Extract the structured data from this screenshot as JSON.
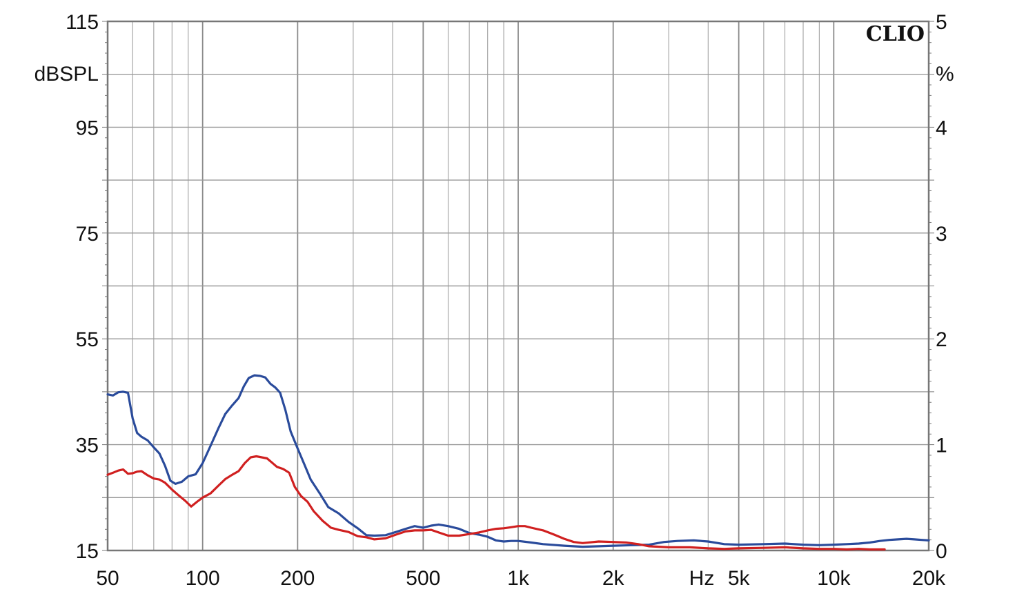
{
  "chart_data": {
    "type": "line",
    "title": "",
    "brand": "CLIO",
    "xlabel": "Hz",
    "ylabel": "dBSPL",
    "ylabel_right": "%",
    "x_scale": "log",
    "xlim": [
      50,
      20000
    ],
    "ylim": [
      15,
      115
    ],
    "ylim_right": [
      0,
      5
    ],
    "grid": true,
    "legend": "none",
    "x_ticks": [
      {
        "value": 50,
        "label": "50"
      },
      {
        "value": 100,
        "label": "100"
      },
      {
        "value": 200,
        "label": "200"
      },
      {
        "value": 500,
        "label": "500"
      },
      {
        "value": 1000,
        "label": "1k"
      },
      {
        "value": 2000,
        "label": "2k"
      },
      {
        "value": 5000,
        "label": "5k"
      },
      {
        "value": 10000,
        "label": "10k"
      },
      {
        "value": 20000,
        "label": "20k"
      }
    ],
    "y_ticks_left": [
      "115",
      "95",
      "75",
      "55",
      "35",
      "15"
    ],
    "y_ticks_right": [
      "5",
      "4",
      "3",
      "2",
      "1",
      "0"
    ],
    "series": [
      {
        "color": "#2a4b9b",
        "points": [
          [
            50,
            44.5
          ],
          [
            52,
            44.3
          ],
          [
            54,
            44.9
          ],
          [
            56,
            45.0
          ],
          [
            58,
            44.8
          ],
          [
            60,
            40.0
          ],
          [
            62,
            37.2
          ],
          [
            64,
            36.5
          ],
          [
            67,
            35.8
          ],
          [
            70,
            34.5
          ],
          [
            73,
            33.3
          ],
          [
            76,
            31.0
          ],
          [
            79,
            28.2
          ],
          [
            82,
            27.6
          ],
          [
            86,
            28.0
          ],
          [
            90,
            29.0
          ],
          [
            95,
            29.4
          ],
          [
            100,
            31.5
          ],
          [
            106,
            34.8
          ],
          [
            112,
            38.0
          ],
          [
            118,
            40.8
          ],
          [
            124,
            42.4
          ],
          [
            130,
            43.8
          ],
          [
            135,
            46.0
          ],
          [
            140,
            47.6
          ],
          [
            146,
            48.1
          ],
          [
            152,
            48.0
          ],
          [
            158,
            47.7
          ],
          [
            164,
            46.5
          ],
          [
            170,
            45.8
          ],
          [
            176,
            44.8
          ],
          [
            183,
            41.5
          ],
          [
            190,
            37.5
          ],
          [
            200,
            34.3
          ],
          [
            210,
            31.3
          ],
          [
            220,
            28.4
          ],
          [
            235,
            25.8
          ],
          [
            250,
            23.2
          ],
          [
            270,
            22.0
          ],
          [
            290,
            20.4
          ],
          [
            310,
            19.2
          ],
          [
            330,
            17.9
          ],
          [
            350,
            17.8
          ],
          [
            380,
            17.9
          ],
          [
            410,
            18.5
          ],
          [
            440,
            19.1
          ],
          [
            470,
            19.6
          ],
          [
            500,
            19.3
          ],
          [
            530,
            19.7
          ],
          [
            560,
            19.9
          ],
          [
            600,
            19.6
          ],
          [
            650,
            19.1
          ],
          [
            700,
            18.3
          ],
          [
            750,
            18.0
          ],
          [
            800,
            17.6
          ],
          [
            850,
            16.9
          ],
          [
            900,
            16.7
          ],
          [
            950,
            16.8
          ],
          [
            1000,
            16.8
          ],
          [
            1100,
            16.5
          ],
          [
            1200,
            16.2
          ],
          [
            1400,
            15.9
          ],
          [
            1600,
            15.7
          ],
          [
            1800,
            15.8
          ],
          [
            2000,
            15.9
          ],
          [
            2300,
            16.0
          ],
          [
            2600,
            16.1
          ],
          [
            2900,
            16.6
          ],
          [
            3200,
            16.8
          ],
          [
            3600,
            16.9
          ],
          [
            4000,
            16.7
          ],
          [
            4500,
            16.2
          ],
          [
            5000,
            16.1
          ],
          [
            6000,
            16.2
          ],
          [
            7000,
            16.3
          ],
          [
            8000,
            16.1
          ],
          [
            9000,
            16.0
          ],
          [
            10000,
            16.1
          ],
          [
            11000,
            16.2
          ],
          [
            12000,
            16.3
          ],
          [
            13000,
            16.5
          ],
          [
            14000,
            16.8
          ],
          [
            15000,
            17.0
          ],
          [
            16000,
            17.1
          ],
          [
            17000,
            17.2
          ],
          [
            18000,
            17.1
          ],
          [
            19000,
            17.0
          ],
          [
            20000,
            16.9
          ]
        ]
      },
      {
        "color": "#d02020",
        "points": [
          [
            50,
            29.3
          ],
          [
            52,
            29.7
          ],
          [
            54,
            30.1
          ],
          [
            56,
            30.3
          ],
          [
            58,
            29.5
          ],
          [
            60,
            29.6
          ],
          [
            62,
            29.9
          ],
          [
            64,
            30.0
          ],
          [
            67,
            29.2
          ],
          [
            70,
            28.6
          ],
          [
            73,
            28.4
          ],
          [
            76,
            27.8
          ],
          [
            80,
            26.5
          ],
          [
            84,
            25.4
          ],
          [
            88,
            24.4
          ],
          [
            92,
            23.3
          ],
          [
            96,
            24.2
          ],
          [
            100,
            25.0
          ],
          [
            106,
            25.8
          ],
          [
            112,
            27.2
          ],
          [
            118,
            28.5
          ],
          [
            124,
            29.3
          ],
          [
            130,
            30.0
          ],
          [
            136,
            31.5
          ],
          [
            142,
            32.6
          ],
          [
            148,
            32.8
          ],
          [
            154,
            32.6
          ],
          [
            160,
            32.4
          ],
          [
            166,
            31.6
          ],
          [
            172,
            30.8
          ],
          [
            180,
            30.4
          ],
          [
            188,
            29.7
          ],
          [
            196,
            27.0
          ],
          [
            205,
            25.3
          ],
          [
            215,
            24.2
          ],
          [
            225,
            22.4
          ],
          [
            240,
            20.6
          ],
          [
            255,
            19.3
          ],
          [
            270,
            18.9
          ],
          [
            290,
            18.5
          ],
          [
            310,
            17.7
          ],
          [
            330,
            17.5
          ],
          [
            350,
            17.1
          ],
          [
            380,
            17.3
          ],
          [
            410,
            18.0
          ],
          [
            440,
            18.6
          ],
          [
            470,
            18.8
          ],
          [
            500,
            18.8
          ],
          [
            530,
            18.9
          ],
          [
            560,
            18.4
          ],
          [
            600,
            17.8
          ],
          [
            650,
            17.8
          ],
          [
            700,
            18.1
          ],
          [
            750,
            18.4
          ],
          [
            800,
            18.8
          ],
          [
            850,
            19.1
          ],
          [
            900,
            19.2
          ],
          [
            950,
            19.4
          ],
          [
            1000,
            19.6
          ],
          [
            1050,
            19.6
          ],
          [
            1100,
            19.3
          ],
          [
            1200,
            18.8
          ],
          [
            1300,
            18.0
          ],
          [
            1400,
            17.2
          ],
          [
            1500,
            16.6
          ],
          [
            1600,
            16.4
          ],
          [
            1800,
            16.7
          ],
          [
            2000,
            16.6
          ],
          [
            2200,
            16.5
          ],
          [
            2400,
            16.2
          ],
          [
            2600,
            15.8
          ],
          [
            3000,
            15.6
          ],
          [
            3500,
            15.6
          ],
          [
            4000,
            15.4
          ],
          [
            4500,
            15.3
          ],
          [
            5000,
            15.4
          ],
          [
            6000,
            15.5
          ],
          [
            7000,
            15.6
          ],
          [
            8000,
            15.4
          ],
          [
            9000,
            15.3
          ],
          [
            10000,
            15.3
          ],
          [
            11000,
            15.2
          ],
          [
            12000,
            15.3
          ],
          [
            13000,
            15.2
          ],
          [
            14000,
            15.2
          ],
          [
            14500,
            15.2
          ]
        ]
      }
    ]
  }
}
